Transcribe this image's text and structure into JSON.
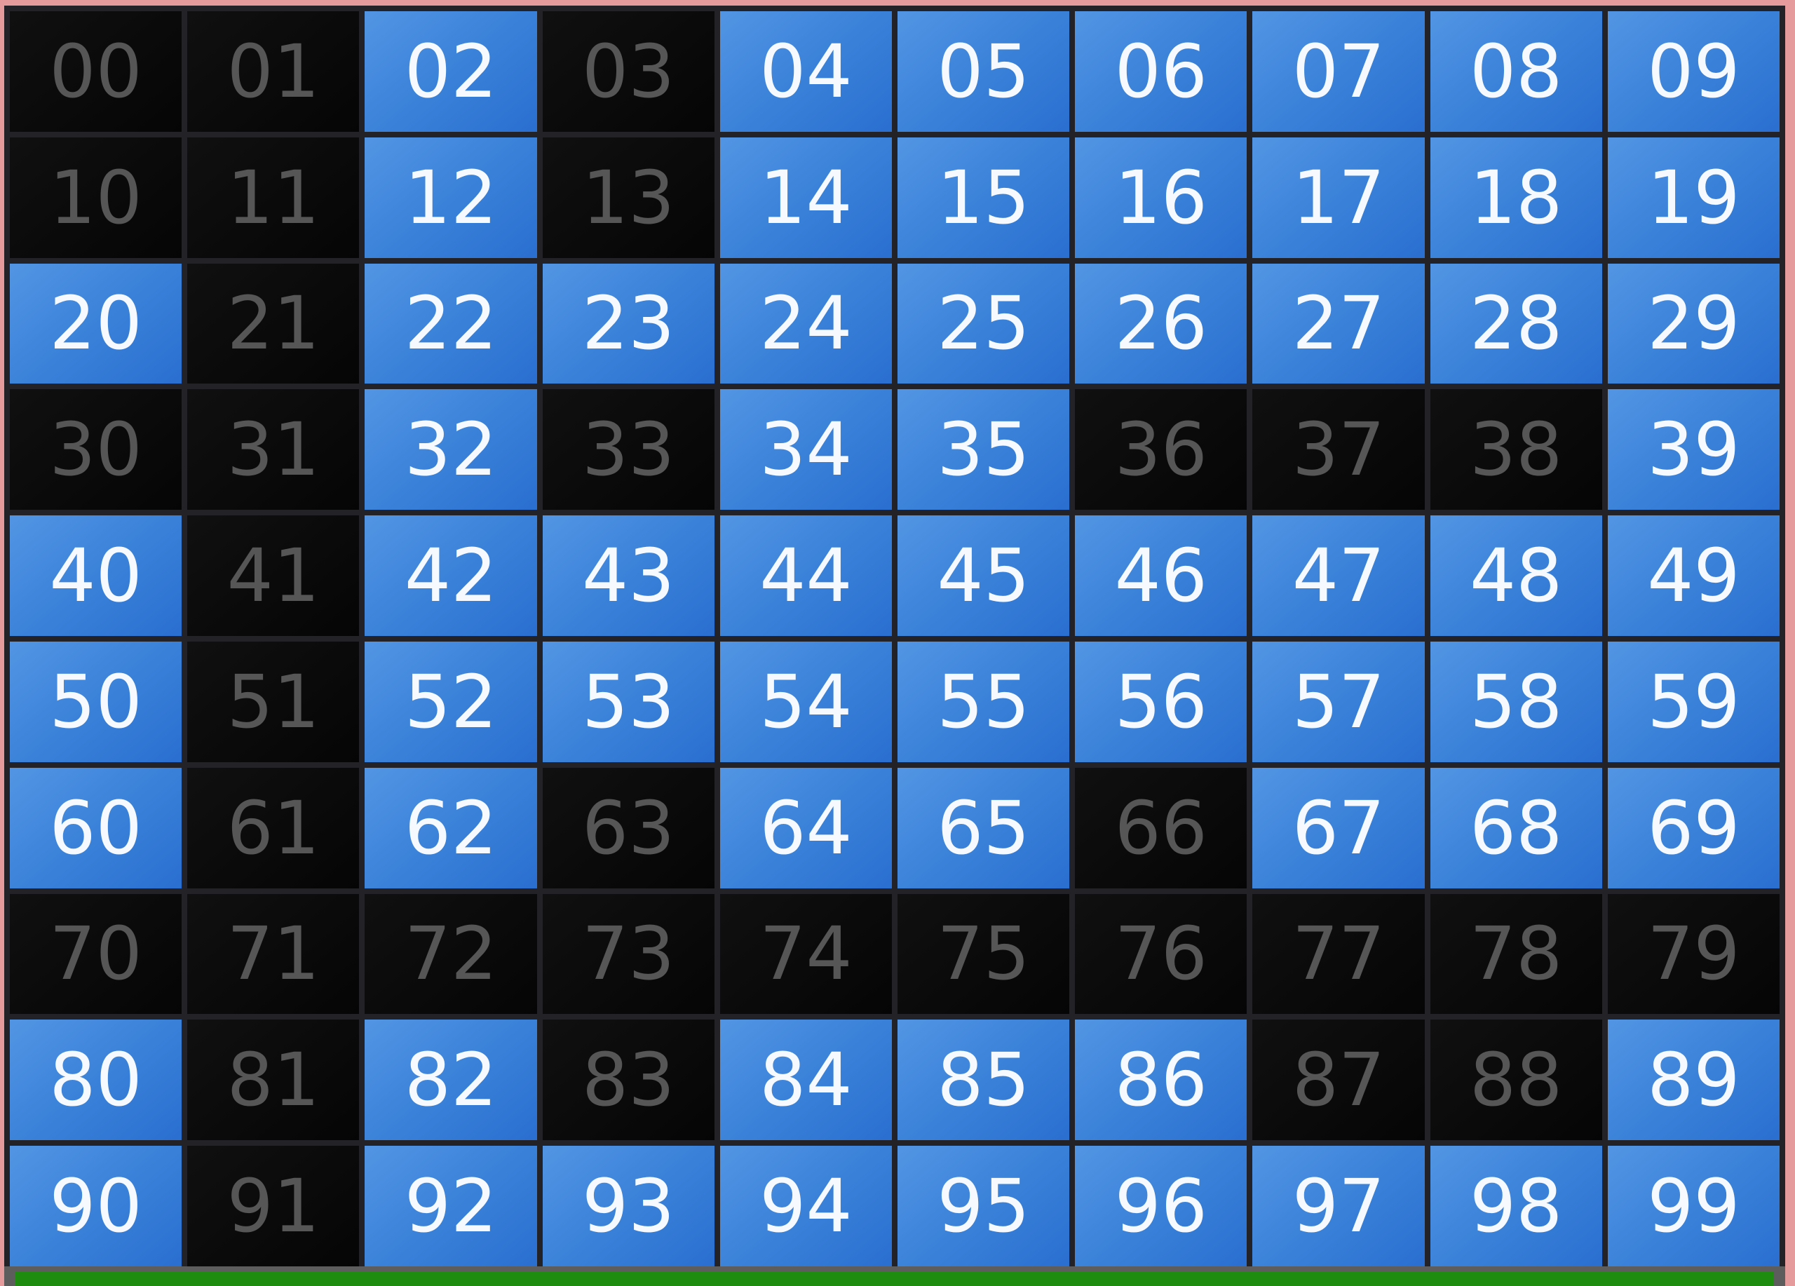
{
  "board": {
    "rows": 10,
    "cols": 10,
    "on_state_meaning": "lit",
    "off_state_meaning": "unlit",
    "cells": [
      {
        "label": "00",
        "state": "off"
      },
      {
        "label": "01",
        "state": "off"
      },
      {
        "label": "02",
        "state": "on"
      },
      {
        "label": "03",
        "state": "off"
      },
      {
        "label": "04",
        "state": "on"
      },
      {
        "label": "05",
        "state": "on"
      },
      {
        "label": "06",
        "state": "on"
      },
      {
        "label": "07",
        "state": "on"
      },
      {
        "label": "08",
        "state": "on"
      },
      {
        "label": "09",
        "state": "on"
      },
      {
        "label": "10",
        "state": "off"
      },
      {
        "label": "11",
        "state": "off"
      },
      {
        "label": "12",
        "state": "on"
      },
      {
        "label": "13",
        "state": "off"
      },
      {
        "label": "14",
        "state": "on"
      },
      {
        "label": "15",
        "state": "on"
      },
      {
        "label": "16",
        "state": "on"
      },
      {
        "label": "17",
        "state": "on"
      },
      {
        "label": "18",
        "state": "on"
      },
      {
        "label": "19",
        "state": "on"
      },
      {
        "label": "20",
        "state": "on"
      },
      {
        "label": "21",
        "state": "off"
      },
      {
        "label": "22",
        "state": "on"
      },
      {
        "label": "23",
        "state": "on"
      },
      {
        "label": "24",
        "state": "on"
      },
      {
        "label": "25",
        "state": "on"
      },
      {
        "label": "26",
        "state": "on"
      },
      {
        "label": "27",
        "state": "on"
      },
      {
        "label": "28",
        "state": "on"
      },
      {
        "label": "29",
        "state": "on"
      },
      {
        "label": "30",
        "state": "off"
      },
      {
        "label": "31",
        "state": "off"
      },
      {
        "label": "32",
        "state": "on"
      },
      {
        "label": "33",
        "state": "off"
      },
      {
        "label": "34",
        "state": "on"
      },
      {
        "label": "35",
        "state": "on"
      },
      {
        "label": "36",
        "state": "off"
      },
      {
        "label": "37",
        "state": "off"
      },
      {
        "label": "38",
        "state": "off"
      },
      {
        "label": "39",
        "state": "on"
      },
      {
        "label": "40",
        "state": "on"
      },
      {
        "label": "41",
        "state": "off"
      },
      {
        "label": "42",
        "state": "on"
      },
      {
        "label": "43",
        "state": "on"
      },
      {
        "label": "44",
        "state": "on"
      },
      {
        "label": "45",
        "state": "on"
      },
      {
        "label": "46",
        "state": "on"
      },
      {
        "label": "47",
        "state": "on"
      },
      {
        "label": "48",
        "state": "on"
      },
      {
        "label": "49",
        "state": "on"
      },
      {
        "label": "50",
        "state": "on"
      },
      {
        "label": "51",
        "state": "off"
      },
      {
        "label": "52",
        "state": "on"
      },
      {
        "label": "53",
        "state": "on"
      },
      {
        "label": "54",
        "state": "on"
      },
      {
        "label": "55",
        "state": "on"
      },
      {
        "label": "56",
        "state": "on"
      },
      {
        "label": "57",
        "state": "on"
      },
      {
        "label": "58",
        "state": "on"
      },
      {
        "label": "59",
        "state": "on"
      },
      {
        "label": "60",
        "state": "on"
      },
      {
        "label": "61",
        "state": "off"
      },
      {
        "label": "62",
        "state": "on"
      },
      {
        "label": "63",
        "state": "off"
      },
      {
        "label": "64",
        "state": "on"
      },
      {
        "label": "65",
        "state": "on"
      },
      {
        "label": "66",
        "state": "off"
      },
      {
        "label": "67",
        "state": "on"
      },
      {
        "label": "68",
        "state": "on"
      },
      {
        "label": "69",
        "state": "on"
      },
      {
        "label": "70",
        "state": "off"
      },
      {
        "label": "71",
        "state": "off"
      },
      {
        "label": "72",
        "state": "off"
      },
      {
        "label": "73",
        "state": "off"
      },
      {
        "label": "74",
        "state": "off"
      },
      {
        "label": "75",
        "state": "off"
      },
      {
        "label": "76",
        "state": "off"
      },
      {
        "label": "77",
        "state": "off"
      },
      {
        "label": "78",
        "state": "off"
      },
      {
        "label": "79",
        "state": "off"
      },
      {
        "label": "80",
        "state": "on"
      },
      {
        "label": "81",
        "state": "off"
      },
      {
        "label": "82",
        "state": "on"
      },
      {
        "label": "83",
        "state": "off"
      },
      {
        "label": "84",
        "state": "on"
      },
      {
        "label": "85",
        "state": "on"
      },
      {
        "label": "86",
        "state": "on"
      },
      {
        "label": "87",
        "state": "off"
      },
      {
        "label": "88",
        "state": "off"
      },
      {
        "label": "89",
        "state": "on"
      },
      {
        "label": "90",
        "state": "on"
      },
      {
        "label": "91",
        "state": "off"
      },
      {
        "label": "92",
        "state": "on"
      },
      {
        "label": "93",
        "state": "on"
      },
      {
        "label": "94",
        "state": "on"
      },
      {
        "label": "95",
        "state": "on"
      },
      {
        "label": "96",
        "state": "on"
      },
      {
        "label": "97",
        "state": "on"
      },
      {
        "label": "98",
        "state": "on"
      },
      {
        "label": "99",
        "state": "on"
      }
    ]
  },
  "colors": {
    "frame_pink": "#e59b9c",
    "grid_line": "#232327",
    "cell_on_top": "#5295e4",
    "cell_on_mid": "#3880d8",
    "cell_on_bottom": "#2a6fd0",
    "cell_on_text": "#f6f9fd",
    "cell_off_bg": "#070707",
    "cell_off_text": "#565656",
    "status_strip": "#5d5d5d",
    "progress_green": "#1e8c0e"
  }
}
